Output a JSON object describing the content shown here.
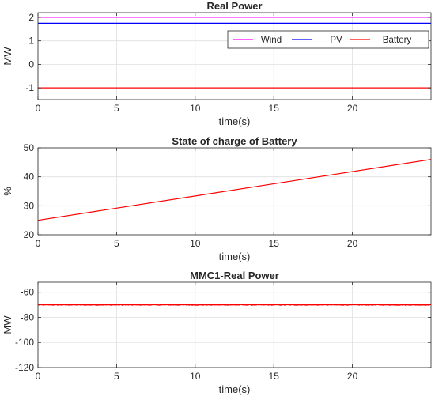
{
  "chart_data": [
    {
      "type": "line",
      "title": "Real Power",
      "xlabel": "time(s)",
      "ylabel": "MW",
      "xlim": [
        0,
        25
      ],
      "ylim": [
        -1.5,
        2.2
      ],
      "xticks": [
        0,
        5,
        10,
        15,
        20
      ],
      "yticks": [
        -1,
        0,
        1,
        2
      ],
      "grid": true,
      "legend": "top-right",
      "series": [
        {
          "name": "Wind",
          "color": "#ff00ff",
          "x": [
            0,
            25
          ],
          "y": [
            2,
            2
          ]
        },
        {
          "name": "PV",
          "color": "#0000ff",
          "x": [
            0,
            25
          ],
          "y": [
            1.75,
            1.75
          ]
        },
        {
          "name": "Battery",
          "color": "#ff0000",
          "x": [
            0,
            25
          ],
          "y": [
            -1,
            -1
          ]
        }
      ]
    },
    {
      "type": "line",
      "title": "State of charge of Battery",
      "xlabel": "time(s)",
      "ylabel": "%",
      "xlim": [
        0,
        25
      ],
      "ylim": [
        20,
        50
      ],
      "xticks": [
        0,
        5,
        10,
        15,
        20
      ],
      "yticks": [
        20,
        30,
        40,
        50
      ],
      "grid": true,
      "series": [
        {
          "color": "#ff0000",
          "x": [
            0,
            25
          ],
          "y": [
            25,
            46
          ]
        }
      ]
    },
    {
      "type": "line",
      "title": "MMC1-Real Power",
      "xlabel": "time(s)",
      "ylabel": "MW",
      "xlim": [
        0,
        25
      ],
      "ylim": [
        -120,
        -52
      ],
      "xticks": [
        0,
        5,
        10,
        15,
        20
      ],
      "yticks": [
        -120,
        -100,
        -80,
        -60
      ],
      "grid": true,
      "series": [
        {
          "color": "#ff0000",
          "x": [
            0,
            25
          ],
          "y": [
            -70,
            -70
          ],
          "noise": 0.5
        }
      ]
    }
  ]
}
